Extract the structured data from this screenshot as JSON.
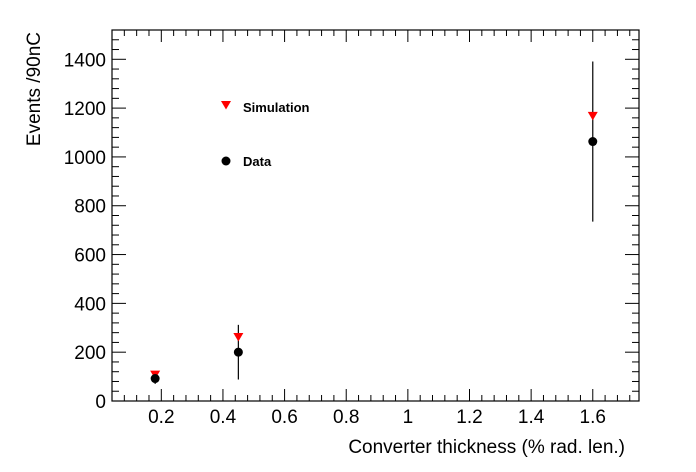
{
  "chart_data": {
    "type": "scatter",
    "title": "",
    "xlabel": "Converter thickness (% rad. len.)",
    "ylabel": "Events /90nC",
    "xlim": [
      0.04,
      1.75
    ],
    "ylim": [
      0,
      1520
    ],
    "x_ticks": [
      0.2,
      0.4,
      0.6,
      0.8,
      1.0,
      1.2,
      1.4,
      1.6
    ],
    "x_tick_labels": [
      "0.2",
      "0.4",
      "0.6",
      "0.8",
      "1",
      "1.2",
      "1.4",
      "1.6"
    ],
    "y_ticks": [
      0,
      200,
      400,
      600,
      800,
      1000,
      1200,
      1400
    ],
    "y_tick_labels": [
      "0",
      "200",
      "400",
      "600",
      "800",
      "1000",
      "1200",
      "1400"
    ],
    "grid": false,
    "legend_position": "upper-left-inside",
    "series": [
      {
        "name": "Simulation",
        "marker": "triangle-down",
        "color": "#ff0000",
        "points": [
          {
            "x": 0.18,
            "y": 108
          },
          {
            "x": 0.45,
            "y": 262
          },
          {
            "x": 1.6,
            "y": 1168
          }
        ]
      },
      {
        "name": "Data",
        "marker": "circle",
        "color": "#000000",
        "points": [
          {
            "x": 0.18,
            "y": 92,
            "err": 22
          },
          {
            "x": 0.45,
            "y": 200,
            "err": 112
          },
          {
            "x": 1.6,
            "y": 1063,
            "err": 328
          }
        ]
      }
    ]
  }
}
